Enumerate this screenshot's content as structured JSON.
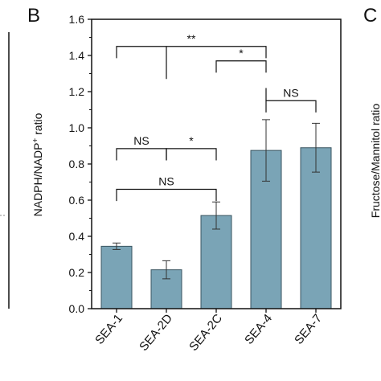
{
  "panels": {
    "b_letter": "B",
    "c_letter": "C",
    "c_ylabel": "Fructose/Mannitol ratio"
  },
  "chart_data": {
    "type": "bar",
    "ylabel": "NADPH/NADP⁺ ratio",
    "ylim": [
      0,
      1.6
    ],
    "yticks": [
      "0.0",
      "0.2",
      "0.4",
      "0.6",
      "0.8",
      "1.0",
      "1.2",
      "1.4",
      "1.6"
    ],
    "categories": [
      "SEA-1",
      "SEA-2D",
      "SEA-2C",
      "SEA-4",
      "SEA-7"
    ],
    "values": [
      0.345,
      0.215,
      0.515,
      0.875,
      0.89
    ],
    "errors": [
      0.018,
      0.05,
      0.075,
      0.17,
      0.135
    ],
    "bar_color": "#7aa4b6",
    "bar_edge_color": "#3a5560",
    "significance": [
      {
        "from": "SEA-1",
        "to": "SEA-2D",
        "label": "NS",
        "y": 0.885
      },
      {
        "from": "SEA-2D",
        "to": "SEA-2C",
        "label": "*",
        "y": 0.885
      },
      {
        "from": "SEA-1",
        "to": "SEA-2C",
        "label": "NS",
        "y": 0.66
      },
      {
        "from": "SEA-4",
        "to": "SEA-7",
        "label": "NS",
        "y": 1.15
      },
      {
        "from": "SEA-2C",
        "to": "SEA-4",
        "label": "*",
        "y": 1.37
      },
      {
        "from": "SEA-1",
        "to": "SEA-4",
        "label": "**",
        "y": 1.45
      }
    ]
  }
}
